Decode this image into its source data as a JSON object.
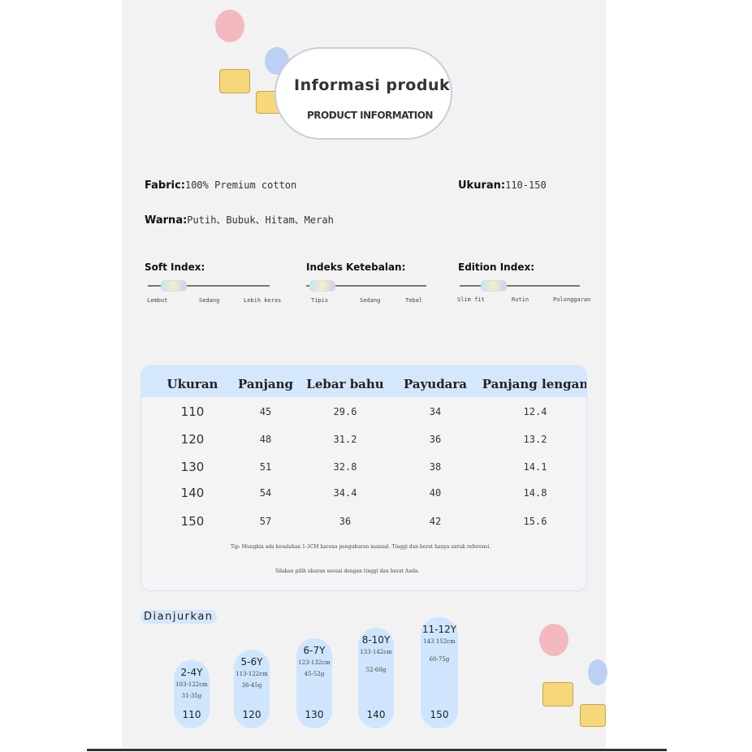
{
  "header": {
    "title": "Informasi produk",
    "subtitle": "PRODUCT INFORMATION"
  },
  "info": {
    "fabric_label": "Fabric:",
    "fabric_value": "100% Premium cotton",
    "size_label": "Ukuran:",
    "size_value": "110-150",
    "color_label": "Warna:",
    "color_value": "Putih、Bubuk、Hitam、Merah"
  },
  "indices": [
    {
      "title": "Soft Index:",
      "ticks": [
        "Lembut",
        "Sedang",
        "Lebih keras"
      ],
      "level": "Lembut"
    },
    {
      "title": "Indeks Ketebalan:",
      "ticks": [
        "Tipis",
        "Sedang",
        "Tebal"
      ],
      "level": "Tipis"
    },
    {
      "title": "Edition Index:",
      "ticks": [
        "Slim fit",
        "Rutin",
        "Polonggaran"
      ],
      "level": "Slim fit"
    }
  ],
  "table": {
    "headers": [
      "Ukuran",
      "Panjang",
      "Lebar bahu",
      "Payudara",
      "Panjang lengan"
    ],
    "rows": [
      [
        "110",
        "45",
        "29.6",
        "34",
        "12.4"
      ],
      [
        "120",
        "48",
        "31.2",
        "36",
        "13.2"
      ],
      [
        "130",
        "51",
        "32.8",
        "38",
        "14.1"
      ],
      [
        "140",
        "54",
        "34.4",
        "40",
        "14.8"
      ],
      [
        "150",
        "57",
        "36",
        "42",
        "15.6"
      ]
    ],
    "note1": "Tip: Mungkin ada kesalahan 1-3CM karena pengukuran manual. Tinggi dan berat hanya untuk referensi.",
    "note2": "Silakan pilih ukuran sesuai dengan tinggi dan berat Anda."
  },
  "recommend": {
    "label": "Dianjurkan",
    "items": [
      {
        "age": "2-4Y",
        "height": "103-122cm",
        "weight": "31-35g",
        "size": "110"
      },
      {
        "age": "5-6Y",
        "height": "113-122cm",
        "weight": "36-45g",
        "size": "120"
      },
      {
        "age": "6-7Y",
        "height": "123-132cm",
        "weight": "45-52g",
        "size": "130"
      },
      {
        "age": "8-10Y",
        "height": "133-142cm",
        "weight": "52-60g",
        "size": "140"
      },
      {
        "age": "11-12Y",
        "height": "143 152cm",
        "weight": "60-75g",
        "size": "150"
      }
    ]
  },
  "colors": {
    "accent": "#d4e7fc",
    "panel": "#f2f2f3"
  }
}
